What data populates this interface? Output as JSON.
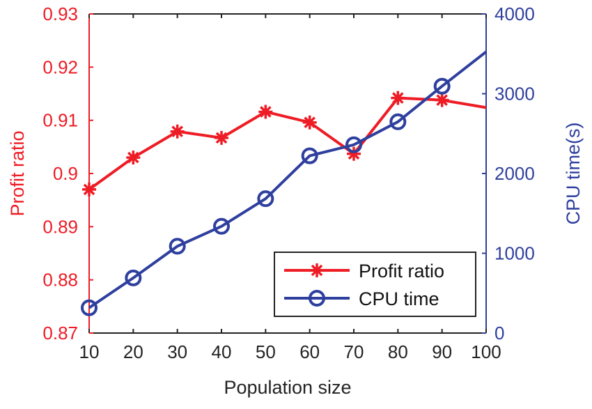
{
  "chart_data": {
    "type": "line",
    "xlabel": "Population size",
    "ylabel_left": "Profit ratio",
    "ylabel_right": "CPU time(s)",
    "x": [
      10,
      20,
      30,
      40,
      50,
      60,
      70,
      80,
      90,
      100
    ],
    "xlim": [
      10,
      100
    ],
    "ylim_left": [
      0.87,
      0.93
    ],
    "ylim_right": [
      0,
      4000
    ],
    "xticks": [
      "10",
      "20",
      "30",
      "40",
      "50",
      "60",
      "70",
      "80",
      "90",
      "100"
    ],
    "yticks_left": [
      "0.87",
      "0.88",
      "0.89",
      "0.9",
      "0.91",
      "0.92",
      "0.93"
    ],
    "yticks_right": [
      "0",
      "1000",
      "2000",
      "3000",
      "4000"
    ],
    "grid": false,
    "legend_position": "bottom-right",
    "series": [
      {
        "name": "Profit ratio",
        "axis": "left",
        "color": "#ee1c25",
        "marker": "asterisk",
        "values": [
          0.897,
          0.903,
          0.9079,
          0.9067,
          0.9116,
          0.9096,
          0.9037,
          0.9142,
          0.9138,
          0.9124
        ],
        "marker_shown": [
          true,
          true,
          true,
          true,
          true,
          true,
          true,
          true,
          true,
          false
        ]
      },
      {
        "name": "CPU time",
        "axis": "right",
        "color": "#2e3f9e",
        "marker": "circle",
        "values": [
          317,
          691,
          1088,
          1338,
          1684,
          2222,
          2360,
          2648,
          3094,
          3526
        ],
        "marker_shown": [
          true,
          true,
          true,
          true,
          true,
          true,
          true,
          true,
          true,
          false
        ]
      }
    ]
  }
}
